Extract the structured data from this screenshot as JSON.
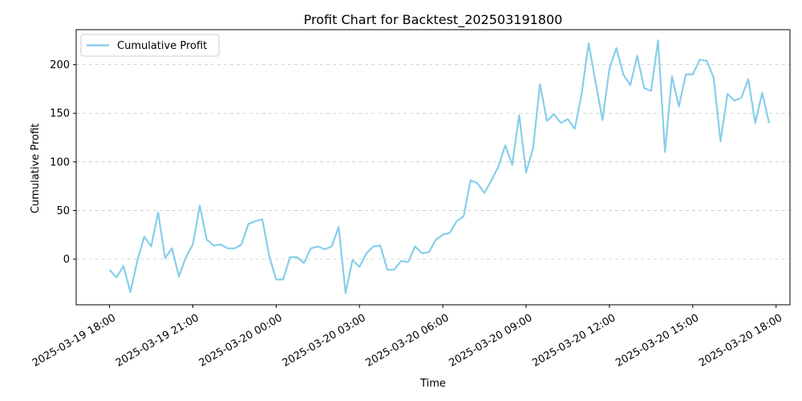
{
  "chart_data": {
    "type": "line",
    "title": "Profit Chart for Backtest_202503191800",
    "xlabel": "Time",
    "ylabel": "Cumulative Profit",
    "x_range_hours": [
      -1.2,
      24.5
    ],
    "ylim": [
      -47,
      236
    ],
    "y_ticks": [
      0,
      50,
      100,
      150,
      200
    ],
    "x_ticks": [
      {
        "hour": 0,
        "label": "2025-03-19 18:00"
      },
      {
        "hour": 3,
        "label": "2025-03-19 21:00"
      },
      {
        "hour": 6,
        "label": "2025-03-20 00:00"
      },
      {
        "hour": 9,
        "label": "2025-03-20 03:00"
      },
      {
        "hour": 12,
        "label": "2025-03-20 06:00"
      },
      {
        "hour": 15,
        "label": "2025-03-20 09:00"
      },
      {
        "hour": 18,
        "label": "2025-03-20 12:00"
      },
      {
        "hour": 21,
        "label": "2025-03-20 15:00"
      },
      {
        "hour": 24,
        "label": "2025-03-20 18:00"
      }
    ],
    "grid": "y-dashed",
    "legend": "top-left",
    "series": [
      {
        "name": "Cumulative Profit",
        "color": "#87ceeb",
        "points": [
          [
            0.0,
            -11
          ],
          [
            0.25,
            -19
          ],
          [
            0.5,
            -7
          ],
          [
            0.75,
            -34
          ],
          [
            1.0,
            -2
          ],
          [
            1.25,
            23
          ],
          [
            1.5,
            13
          ],
          [
            1.75,
            48
          ],
          [
            2.0,
            1
          ],
          [
            2.25,
            11
          ],
          [
            2.5,
            -18
          ],
          [
            2.75,
            2
          ],
          [
            3.0,
            15
          ],
          [
            3.25,
            55
          ],
          [
            3.5,
            20
          ],
          [
            3.75,
            14
          ],
          [
            4.0,
            15
          ],
          [
            4.25,
            11
          ],
          [
            4.5,
            11
          ],
          [
            4.75,
            15
          ],
          [
            5.0,
            36
          ],
          [
            5.25,
            39
          ],
          [
            5.5,
            41
          ],
          [
            5.75,
            3
          ],
          [
            6.0,
            -21
          ],
          [
            6.25,
            -21
          ],
          [
            6.5,
            2
          ],
          [
            6.75,
            2
          ],
          [
            7.0,
            -4
          ],
          [
            7.25,
            11
          ],
          [
            7.5,
            13
          ],
          [
            7.75,
            10
          ],
          [
            8.0,
            13
          ],
          [
            8.25,
            33
          ],
          [
            8.5,
            -35
          ],
          [
            8.75,
            -1
          ],
          [
            9.0,
            -8
          ],
          [
            9.25,
            6
          ],
          [
            9.5,
            13
          ],
          [
            9.75,
            14
          ],
          [
            10.0,
            -11
          ],
          [
            10.25,
            -11
          ],
          [
            10.5,
            -2
          ],
          [
            10.75,
            -3
          ],
          [
            11.0,
            13
          ],
          [
            11.25,
            6
          ],
          [
            11.5,
            7
          ],
          [
            11.75,
            20
          ],
          [
            12.0,
            25
          ],
          [
            12.25,
            27
          ],
          [
            12.5,
            39
          ],
          [
            12.75,
            44
          ],
          [
            13.0,
            81
          ],
          [
            13.25,
            78
          ],
          [
            13.5,
            68
          ],
          [
            13.75,
            81
          ],
          [
            14.0,
            95
          ],
          [
            14.25,
            117
          ],
          [
            14.5,
            97
          ],
          [
            14.75,
            148
          ],
          [
            15.0,
            89
          ],
          [
            15.25,
            114
          ],
          [
            15.5,
            180
          ],
          [
            15.75,
            142
          ],
          [
            16.0,
            149
          ],
          [
            16.25,
            140
          ],
          [
            16.5,
            144
          ],
          [
            16.75,
            134
          ],
          [
            17.0,
            170
          ],
          [
            17.25,
            222
          ],
          [
            17.5,
            182
          ],
          [
            17.75,
            143
          ],
          [
            18.0,
            196
          ],
          [
            18.25,
            217
          ],
          [
            18.5,
            190
          ],
          [
            18.75,
            179
          ],
          [
            19.0,
            209
          ],
          [
            19.25,
            176
          ],
          [
            19.5,
            173
          ],
          [
            19.75,
            225
          ],
          [
            20.0,
            110
          ],
          [
            20.25,
            188
          ],
          [
            20.5,
            157
          ],
          [
            20.75,
            190
          ],
          [
            21.0,
            190
          ],
          [
            21.25,
            205
          ],
          [
            21.5,
            204
          ],
          [
            21.75,
            187
          ],
          [
            22.0,
            121
          ],
          [
            22.25,
            170
          ],
          [
            22.5,
            163
          ],
          [
            22.75,
            166
          ],
          [
            23.0,
            185
          ],
          [
            23.25,
            140
          ],
          [
            23.5,
            171
          ],
          [
            23.75,
            140
          ]
        ]
      }
    ]
  }
}
